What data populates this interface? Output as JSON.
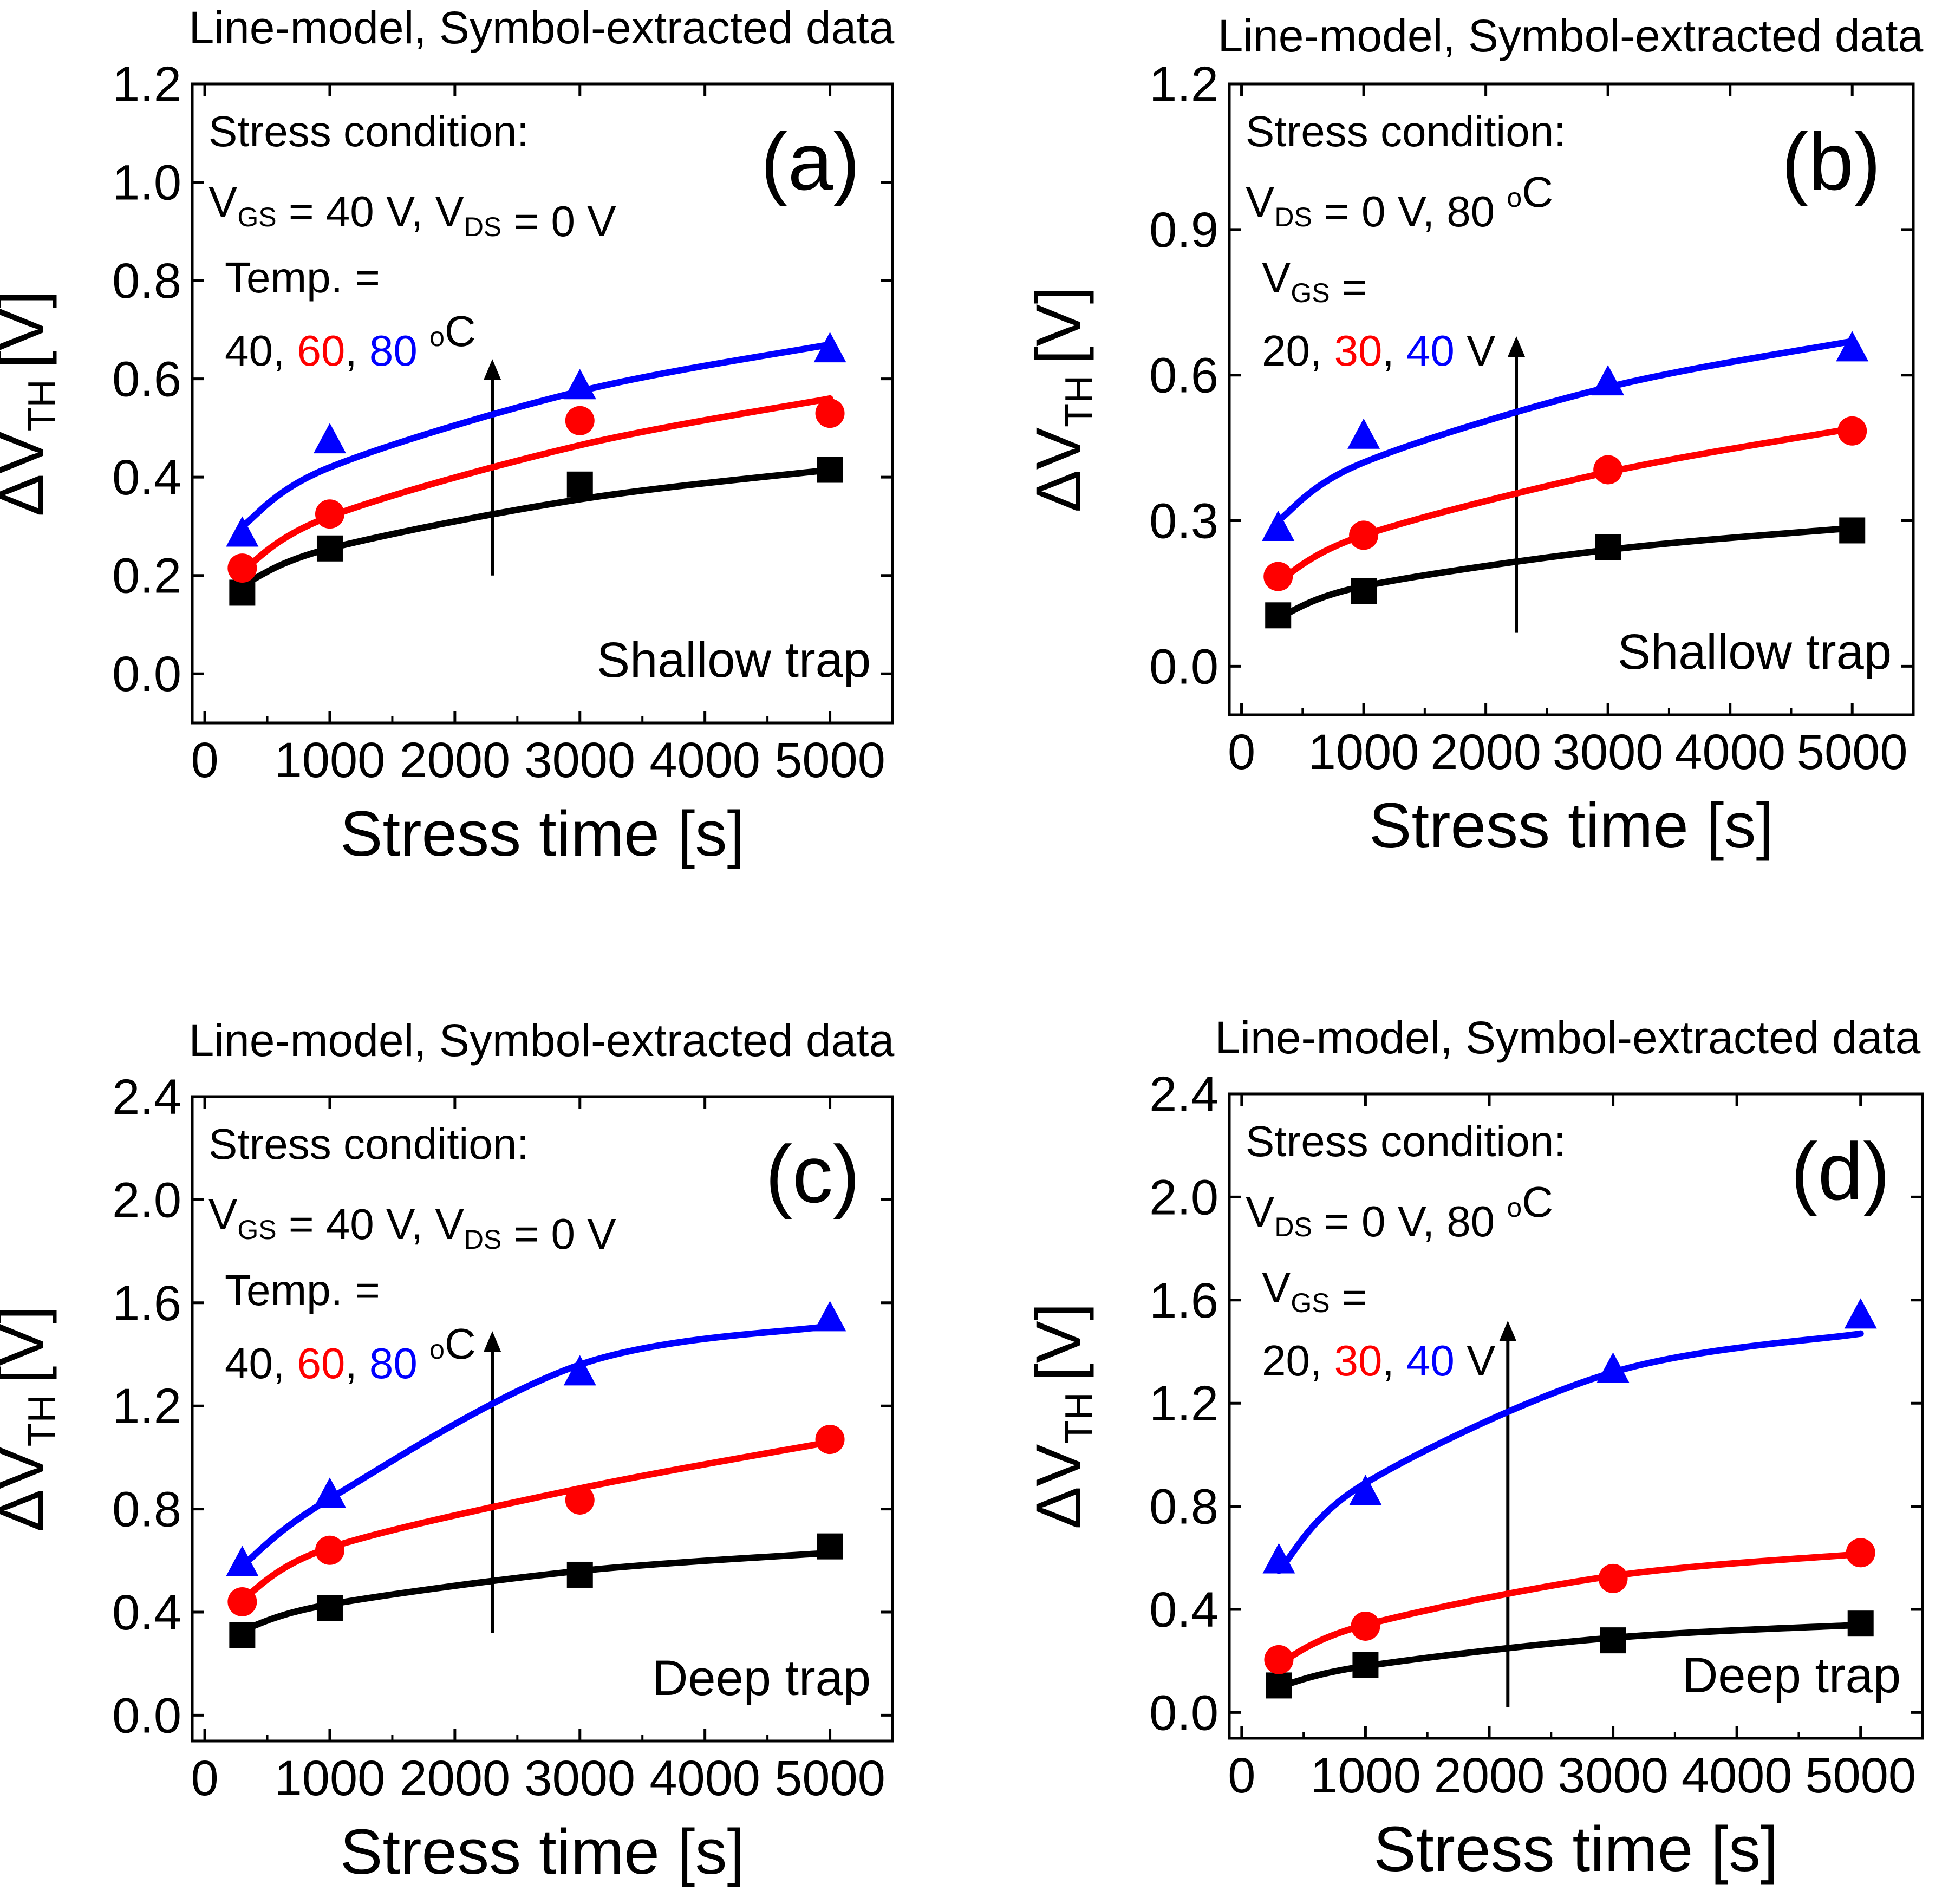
{
  "figure": {
    "colors": {
      "black": "#000000",
      "red": "#ff0000",
      "blue": "#0000ff"
    }
  },
  "chart_data": [
    {
      "id": "a",
      "type": "scatter+line",
      "panel_label": "(a)",
      "header": "Line-model, Symbol-extracted data",
      "xlabel": "Stress time [s]",
      "ylabel_main": "ΔV",
      "ylabel_sub": "TH",
      "ylabel_unit": "[V]",
      "xlim": [
        -100,
        5500
      ],
      "ylim": [
        -0.1,
        1.2
      ],
      "xticks": [
        0,
        1000,
        2000,
        3000,
        4000,
        5000
      ],
      "yticks": [
        0.0,
        0.2,
        0.4,
        0.6,
        0.8,
        1.0,
        1.2
      ],
      "ytick_labels": [
        "0.0",
        "0.2",
        "0.4",
        "0.6",
        "0.8",
        "1.0",
        "1.2"
      ],
      "condition": {
        "title": "Stress condition:",
        "line1": [
          {
            "t": "V"
          },
          {
            "t": "GS",
            "sub": true
          },
          {
            "t": " = 40 V, V"
          },
          {
            "t": "DS",
            "sub": true
          },
          {
            "t": " = 0 V"
          }
        ],
        "line2": [
          {
            "t": "Temp. ="
          }
        ],
        "line3": [
          {
            "t": "40, ",
            "color": "black"
          },
          {
            "t": "60",
            "color": "red"
          },
          {
            "t": ", ",
            "color": "black"
          },
          {
            "t": "80",
            "color": "blue"
          },
          {
            "t": " ",
            "color": "black"
          },
          {
            "t": "o",
            "sup": true,
            "color": "black"
          },
          {
            "t": "C",
            "color": "black"
          }
        ]
      },
      "trap_label": "Shallow trap",
      "arrow": {
        "x": 2300,
        "y_from": 0.2,
        "y_to": 0.64
      },
      "series": [
        {
          "name": "40 °C",
          "color": "black",
          "marker": "square",
          "x": [
            300,
            1000,
            3000,
            5000
          ],
          "y": [
            0.165,
            0.255,
            0.385,
            0.415
          ],
          "model": [
            0.18,
            0.255,
            0.355,
            0.415
          ]
        },
        {
          "name": "60 °C",
          "color": "red",
          "marker": "circle",
          "x": [
            300,
            1000,
            3000,
            5000
          ],
          "y": [
            0.215,
            0.325,
            0.515,
            0.53
          ],
          "model": [
            0.21,
            0.32,
            0.465,
            0.56
          ]
        },
        {
          "name": "80 °C",
          "color": "blue",
          "marker": "triangle",
          "x": [
            300,
            1000,
            3000,
            5000
          ],
          "y": [
            0.285,
            0.475,
            0.585,
            0.66
          ],
          "model": [
            0.3,
            0.42,
            0.575,
            0.67
          ]
        }
      ]
    },
    {
      "id": "b",
      "type": "scatter+line",
      "panel_label": "(b)",
      "header": "Line-model, Symbol-extracted data",
      "xlabel": "Stress time [s]",
      "ylabel_main": "ΔV",
      "ylabel_sub": "TH",
      "ylabel_unit": "[V]",
      "xlim": [
        -100,
        5500
      ],
      "ylim": [
        -0.1,
        1.2
      ],
      "xticks": [
        0,
        1000,
        2000,
        3000,
        4000,
        5000
      ],
      "yticks": [
        0.0,
        0.3,
        0.6,
        0.9,
        1.2
      ],
      "ytick_labels": [
        "0.0",
        "0.3",
        "0.6",
        "0.9",
        "1.2"
      ],
      "condition": {
        "title": "Stress condition:",
        "line1": [
          {
            "t": "V"
          },
          {
            "t": "DS",
            "sub": true
          },
          {
            "t": " = 0 V, 80 "
          },
          {
            "t": "o",
            "sup": true
          },
          {
            "t": "C"
          }
        ],
        "line2": [
          {
            "t": "V"
          },
          {
            "t": "GS",
            "sub": true
          },
          {
            "t": " ="
          }
        ],
        "line3": [
          {
            "t": "20, ",
            "color": "black"
          },
          {
            "t": "30",
            "color": "red"
          },
          {
            "t": ", ",
            "color": "black"
          },
          {
            "t": "40",
            "color": "blue"
          },
          {
            "t": " V",
            "color": "black"
          }
        ]
      },
      "trap_label": "Shallow trap",
      "arrow": {
        "x": 2250,
        "y_from": 0.07,
        "y_to": 0.68
      },
      "series": [
        {
          "name": "20 V",
          "color": "black",
          "marker": "square",
          "x": [
            300,
            1000,
            3000,
            5000
          ],
          "y": [
            0.105,
            0.155,
            0.245,
            0.28
          ],
          "model": [
            0.1,
            0.165,
            0.24,
            0.285
          ]
        },
        {
          "name": "30 V",
          "color": "red",
          "marker": "circle",
          "x": [
            300,
            1000,
            3000,
            5000
          ],
          "y": [
            0.185,
            0.27,
            0.405,
            0.485
          ],
          "model": [
            0.175,
            0.27,
            0.4,
            0.49
          ]
        },
        {
          "name": "40 V",
          "color": "blue",
          "marker": "triangle",
          "x": [
            300,
            1000,
            3000,
            5000
          ],
          "y": [
            0.285,
            0.475,
            0.585,
            0.655
          ],
          "model": [
            0.3,
            0.42,
            0.575,
            0.67
          ]
        }
      ]
    },
    {
      "id": "c",
      "type": "scatter+line",
      "panel_label": "(c)",
      "header": "Line-model, Symbol-extracted data",
      "xlabel": "Stress time [s]",
      "ylabel_main": "ΔV",
      "ylabel_sub": "TH",
      "ylabel_unit": "[V]",
      "xlim": [
        -100,
        5500
      ],
      "ylim": [
        -0.1,
        2.4
      ],
      "xticks": [
        0,
        1000,
        2000,
        3000,
        4000,
        5000
      ],
      "yticks": [
        0.0,
        0.4,
        0.8,
        1.2,
        1.6,
        2.0,
        2.4
      ],
      "ytick_labels": [
        "0.0",
        "0.4",
        "0.8",
        "1.2",
        "1.6",
        "2.0",
        "2.4"
      ],
      "condition": {
        "title": "Stress condition:",
        "line1": [
          {
            "t": "V"
          },
          {
            "t": "GS",
            "sub": true
          },
          {
            "t": " = 40 V, V"
          },
          {
            "t": "DS",
            "sub": true
          },
          {
            "t": " = 0 V"
          }
        ],
        "line2": [
          {
            "t": "Temp. ="
          }
        ],
        "line3": [
          {
            "t": "40, ",
            "color": "black"
          },
          {
            "t": "60",
            "color": "red"
          },
          {
            "t": ", ",
            "color": "black"
          },
          {
            "t": "80",
            "color": "blue"
          },
          {
            "t": " ",
            "color": "black"
          },
          {
            "t": "o",
            "sup": true,
            "color": "black"
          },
          {
            "t": "C",
            "color": "black"
          }
        ]
      },
      "trap_label": "Deep trap",
      "arrow": {
        "x": 2300,
        "y_from": 0.32,
        "y_to": 1.49
      },
      "series": [
        {
          "name": "40 °C",
          "color": "black",
          "marker": "square",
          "x": [
            300,
            1000,
            3000,
            5000
          ],
          "y": [
            0.31,
            0.415,
            0.545,
            0.655
          ],
          "model": [
            0.33,
            0.43,
            0.56,
            0.63
          ]
        },
        {
          "name": "60 °C",
          "color": "red",
          "marker": "circle",
          "x": [
            300,
            1000,
            3000,
            5000
          ],
          "y": [
            0.44,
            0.64,
            0.835,
            1.07
          ],
          "model": [
            0.45,
            0.65,
            0.88,
            1.06
          ]
        },
        {
          "name": "80 °C",
          "color": "blue",
          "marker": "triangle",
          "x": [
            300,
            1000,
            3000,
            5000
          ],
          "y": [
            0.59,
            0.855,
            1.33,
            1.54
          ],
          "model": [
            0.58,
            0.84,
            1.36,
            1.51
          ]
        }
      ]
    },
    {
      "id": "d",
      "type": "scatter+line",
      "panel_label": "(d)",
      "header": "Line-model, Symbol-extracted data",
      "xlabel": "Stress time [s]",
      "ylabel_main": "ΔV",
      "ylabel_sub": "TH",
      "ylabel_unit": "[V]",
      "xlim": [
        -100,
        5500
      ],
      "ylim": [
        -0.1,
        2.4
      ],
      "xticks": [
        0,
        1000,
        2000,
        3000,
        4000,
        5000
      ],
      "yticks": [
        0.0,
        0.4,
        0.8,
        1.2,
        1.6,
        2.0,
        2.4
      ],
      "ytick_labels": [
        "0.0",
        "0.4",
        "0.8",
        "1.2",
        "1.6",
        "2.0",
        "2.4"
      ],
      "condition": {
        "title": "Stress condition:",
        "line1": [
          {
            "t": "V"
          },
          {
            "t": "DS",
            "sub": true
          },
          {
            "t": " = 0 V, 80 "
          },
          {
            "t": "o",
            "sup": true
          },
          {
            "t": "C"
          }
        ],
        "line2": [
          {
            "t": "V"
          },
          {
            "t": "GS",
            "sub": true
          },
          {
            "t": " ="
          }
        ],
        "line3": [
          {
            "t": "20, ",
            "color": "black"
          },
          {
            "t": "30",
            "color": "red"
          },
          {
            "t": ", ",
            "color": "black"
          },
          {
            "t": "40",
            "color": "blue"
          },
          {
            "t": " V",
            "color": "black"
          }
        ]
      },
      "trap_label": "Deep trap",
      "arrow": {
        "x": 2150,
        "y_from": 0.02,
        "y_to": 1.52
      },
      "series": [
        {
          "name": "20 V",
          "color": "black",
          "marker": "square",
          "x": [
            300,
            1000,
            3000,
            5000
          ],
          "y": [
            0.105,
            0.185,
            0.28,
            0.345
          ],
          "model": [
            0.1,
            0.18,
            0.29,
            0.34
          ]
        },
        {
          "name": "30 V",
          "color": "red",
          "marker": "circle",
          "x": [
            300,
            1000,
            3000,
            5000
          ],
          "y": [
            0.205,
            0.335,
            0.52,
            0.62
          ],
          "model": [
            0.19,
            0.34,
            0.53,
            0.615
          ]
        },
        {
          "name": "40 V",
          "color": "blue",
          "marker": "triangle",
          "x": [
            300,
            1000,
            3000,
            5000
          ],
          "y": [
            0.59,
            0.855,
            1.33,
            1.54
          ],
          "model": [
            0.55,
            0.89,
            1.32,
            1.47
          ]
        }
      ]
    }
  ]
}
